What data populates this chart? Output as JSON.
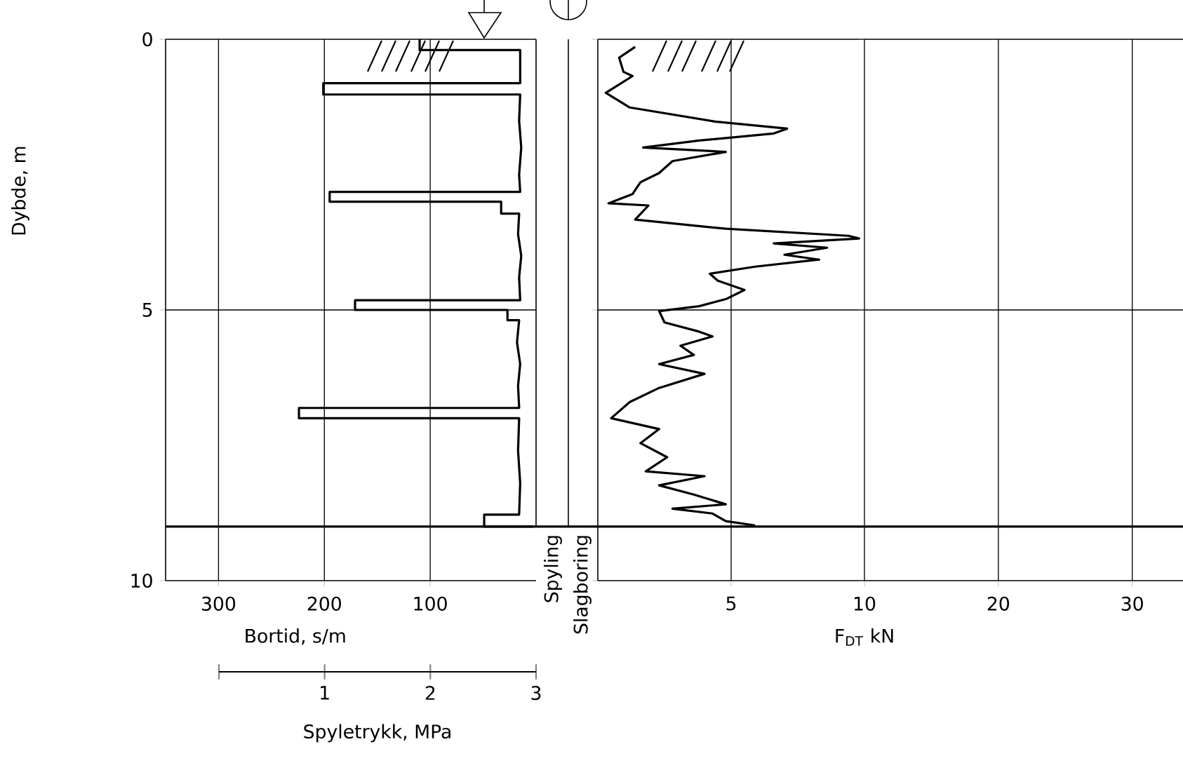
{
  "chart_data": [
    {
      "type": "line",
      "orientation": "horizontal",
      "xlabel": "Bortid, s/m",
      "ylabel": "Dybde, m",
      "xlim": [
        350,
        0
      ],
      "xticks": [
        300,
        200,
        100
      ],
      "ylim": [
        10,
        0
      ],
      "yticks": [
        0,
        5,
        10
      ],
      "grid": true,
      "x2lim": [
        0,
        3
      ],
      "x2ticks": [
        {
          "value": 0,
          "label": null
        },
        1,
        2,
        3
      ],
      "x2label": "Spyletrykk, MPa",
      "annotations": [
        "Spyling",
        "Slagboring"
      ],
      "ref_lines": [
        {
          "axis": "y",
          "value": 9
        }
      ],
      "series": [
        {
          "color": "#000000",
          "x": [
            0,
            0.2,
            0.2,
            0.81,
            0.81,
            1.02,
            1.02,
            1.5,
            2.0,
            2.5,
            2.82,
            2.82,
            3.0,
            3.0,
            3.22,
            3.22,
            3.6,
            4.0,
            4.4,
            4.82,
            4.82,
            5.0,
            5.0,
            5.19,
            5.19,
            5.6,
            6.0,
            6.4,
            6.81,
            6.81,
            7.0,
            7.0,
            7.6,
            8.2,
            8.78,
            8.78,
            9.0,
            9.0
          ],
          "values": [
            110,
            110,
            15,
            15,
            201,
            201,
            15,
            16,
            14,
            16,
            15,
            195,
            195,
            33,
            33,
            16,
            17,
            14,
            16,
            15,
            171,
            171,
            27,
            27,
            16,
            18,
            15,
            17,
            16,
            224,
            224,
            16,
            17,
            15,
            16,
            49,
            49,
            3
          ]
        }
      ]
    },
    {
      "type": "line",
      "orientation": "horizontal",
      "xlabel": "F$_{DT}$   kN",
      "xlim": [
        0,
        10
      ],
      "xticks": [
        5,
        10
      ],
      "ylim": [
        10,
        0
      ],
      "yticks": [
        0,
        5,
        10
      ],
      "grid": true,
      "tick_labels": "x",
      "series": [
        {
          "color": "#000000",
          "x": [
            0.14,
            0.34,
            0.6,
            0.68,
            0.99,
            1.26,
            1.39,
            1.52,
            1.65,
            1.74,
            1.87,
            2.0,
            2.08,
            2.25,
            2.47,
            2.64,
            2.86,
            3.03,
            3.07,
            3.33,
            3.5,
            3.63,
            3.68,
            3.77,
            3.85,
            3.98,
            4.07,
            4.2,
            4.33,
            4.46,
            4.63,
            4.8,
            4.93,
            5.02,
            5.23,
            5.4,
            5.49,
            5.66,
            5.83,
            6.0,
            6.18,
            6.44,
            6.7,
            7.0,
            7.2,
            7.46,
            7.72,
            7.98,
            8.07,
            8.24,
            8.41,
            8.59,
            8.67,
            8.76,
            8.9,
            8.98
          ],
          "values": [
            1.4,
            0.8,
            0.96,
            1.3,
            0.3,
            1.2,
            2.8,
            4.4,
            7.1,
            6.6,
            3.8,
            1.7,
            4.8,
            2.8,
            2.3,
            1.6,
            1.3,
            0.4,
            1.9,
            1.4,
            4.8,
            9.4,
            9.8,
            6.6,
            8.6,
            7.0,
            8.3,
            5.9,
            4.2,
            4.5,
            5.5,
            4.8,
            3.8,
            2.3,
            2.5,
            3.8,
            4.3,
            3.1,
            3.6,
            2.3,
            4.0,
            2.3,
            1.2,
            0.5,
            2.3,
            1.6,
            2.6,
            1.8,
            4.0,
            2.3,
            3.6,
            4.8,
            2.8,
            4.3,
            4.8,
            5.9
          ]
        }
      ]
    },
    {
      "type": "line",
      "orientation": "horizontal",
      "xlim": [
        10,
        34
      ],
      "xticks": [
        20,
        30
      ],
      "ylim": [
        10,
        0
      ],
      "yticks": [
        0,
        5,
        10
      ],
      "grid": true,
      "tick_labels": "x"
    }
  ]
}
